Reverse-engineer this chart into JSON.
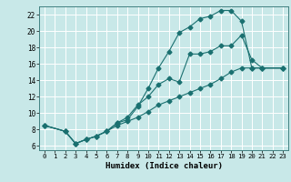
{
  "xlabel": "Humidex (Indice chaleur)",
  "background_color": "#c8e8e8",
  "line_color": "#1a7070",
  "grid_color": "#ffffff",
  "xlim": [
    -0.5,
    23.5
  ],
  "ylim": [
    5.5,
    23.0
  ],
  "yticks": [
    6,
    8,
    10,
    12,
    14,
    16,
    18,
    20,
    22
  ],
  "xticks": [
    0,
    1,
    2,
    3,
    4,
    5,
    6,
    7,
    8,
    9,
    10,
    11,
    12,
    13,
    14,
    15,
    16,
    17,
    18,
    19,
    20,
    21,
    22,
    23
  ],
  "line1_x": [
    0,
    2,
    3,
    4,
    5,
    6,
    7,
    8,
    9,
    10,
    11,
    12,
    13,
    14,
    15,
    16,
    17,
    18,
    19,
    20,
    21,
    23
  ],
  "line1_y": [
    8.5,
    7.8,
    6.3,
    6.8,
    7.2,
    7.8,
    8.8,
    9.5,
    11.0,
    12.0,
    13.5,
    14.2,
    13.8,
    17.2,
    17.2,
    17.5,
    18.2,
    18.2,
    19.5,
    16.5,
    15.5,
    15.5
  ],
  "line2_x": [
    0,
    2,
    3,
    4,
    5,
    6,
    7,
    8,
    9,
    10,
    11,
    12,
    13,
    14,
    15,
    16,
    17,
    18,
    19,
    20,
    21,
    23
  ],
  "line2_y": [
    8.5,
    7.8,
    6.3,
    6.8,
    7.2,
    7.8,
    8.8,
    9.2,
    10.8,
    13.0,
    15.5,
    17.5,
    19.8,
    20.5,
    21.5,
    21.8,
    22.5,
    22.5,
    21.2,
    15.5,
    15.5,
    15.5
  ],
  "line3_x": [
    0,
    2,
    3,
    4,
    5,
    6,
    7,
    8,
    9,
    10,
    11,
    12,
    13,
    14,
    15,
    16,
    17,
    18,
    19,
    20,
    21,
    23
  ],
  "line3_y": [
    8.5,
    7.8,
    6.3,
    6.8,
    7.2,
    7.8,
    8.5,
    9.0,
    9.5,
    10.2,
    11.0,
    11.5,
    12.0,
    12.5,
    13.0,
    13.5,
    14.2,
    15.0,
    15.5,
    15.5,
    15.5,
    15.5
  ]
}
